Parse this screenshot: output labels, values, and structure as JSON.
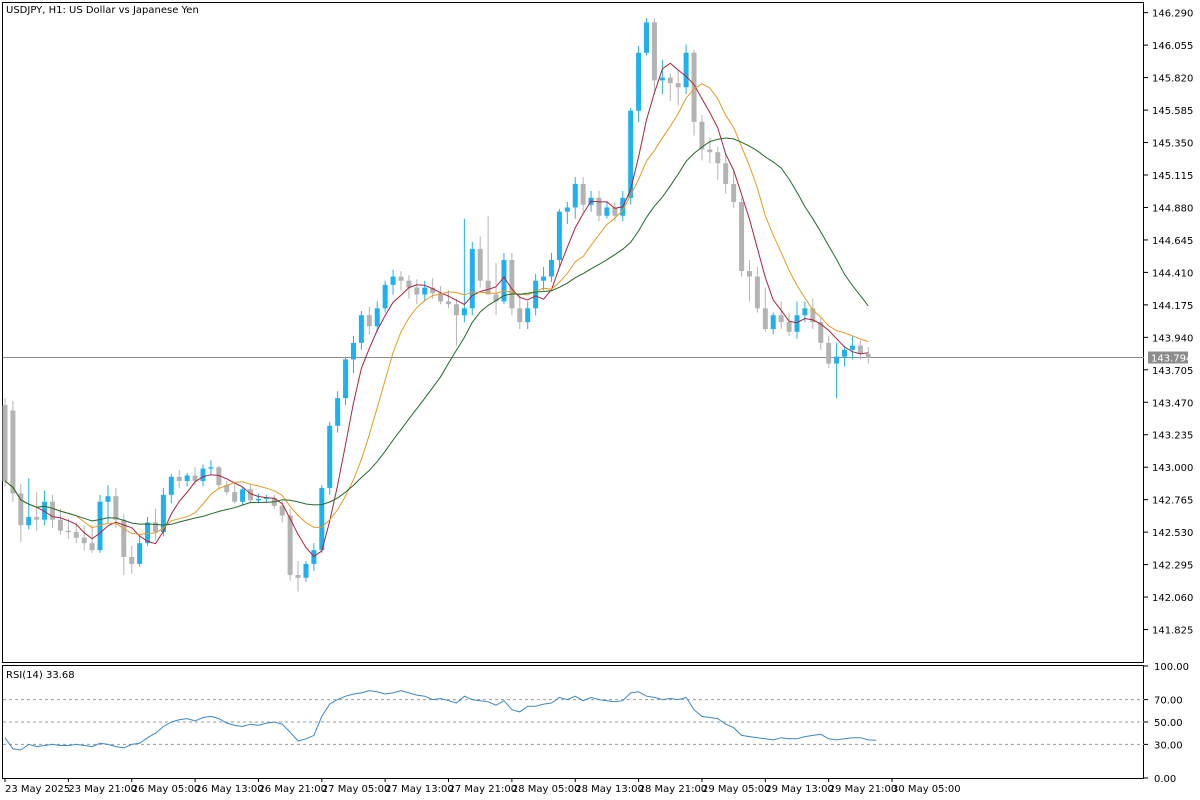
{
  "header": {
    "symbol": "USDJPY, H1:",
    "description": "US Dollar vs Japanese Yen"
  },
  "rsi_panel": {
    "label": "RSI(14) 33.68"
  },
  "current_price_label": "143.794",
  "colors": {
    "bull": "#1fb1ef",
    "bear": "#b3b3b3",
    "ma_fast": "#b0203a",
    "ma_mid": "#e49a1f",
    "ma_slow": "#1f6b2a",
    "rsi_line": "#3a88c9",
    "price_line": "#8c8c8c",
    "frame": "#000000"
  },
  "chart_data": [
    {
      "type": "candlestick",
      "panel": "price",
      "ylim": [
        141.59,
        146.36
      ],
      "grid": false,
      "y_ticks": [
        "146.290",
        "146.055",
        "145.820",
        "145.585",
        "145.350",
        "145.115",
        "144.880",
        "144.645",
        "144.410",
        "144.175",
        "143.940",
        "143.705",
        "143.470",
        "143.235",
        "143.000",
        "142.765",
        "142.530",
        "142.295",
        "142.060",
        "141.825"
      ],
      "x_tick_labels": [
        "23 May 2025",
        "23 May 21:00",
        "26 May 05:00",
        "26 May 13:00",
        "26 May 21:00",
        "27 May 05:00",
        "27 May 13:00",
        "27 May 21:00",
        "28 May 05:00",
        "28 May 13:00",
        "28 May 21:00",
        "29 May 05:00",
        "29 May 13:00",
        "29 May 21:00",
        "30 May 05:00"
      ],
      "x_tick_indices": [
        0,
        8,
        16,
        24,
        32,
        40,
        48,
        56,
        64,
        72,
        80,
        88,
        96,
        104,
        112
      ],
      "current_price": 143.794,
      "candles": [
        [
          143.45,
          143.5,
          142.86,
          142.9
        ],
        [
          143.41,
          143.48,
          142.75,
          142.81
        ],
        [
          142.81,
          142.88,
          142.46,
          142.58
        ],
        [
          142.58,
          142.92,
          142.55,
          142.64
        ],
        [
          142.64,
          142.82,
          142.54,
          142.62
        ],
        [
          142.62,
          142.83,
          142.58,
          142.75
        ],
        [
          142.75,
          142.8,
          142.56,
          142.62
        ],
        [
          142.62,
          142.7,
          142.51,
          142.54
        ],
        [
          142.54,
          142.63,
          142.48,
          142.53
        ],
        [
          142.53,
          142.6,
          142.45,
          142.49
        ],
        [
          142.49,
          142.58,
          142.4,
          142.45
        ],
        [
          142.45,
          142.58,
          142.38,
          142.4
        ],
        [
          142.4,
          142.8,
          142.38,
          142.75
        ],
        [
          142.75,
          142.87,
          142.6,
          142.79
        ],
        [
          142.79,
          142.85,
          142.56,
          142.62
        ],
        [
          142.62,
          142.66,
          142.22,
          142.35
        ],
        [
          142.35,
          142.43,
          142.23,
          142.3
        ],
        [
          142.3,
          142.5,
          142.28,
          142.45
        ],
        [
          142.45,
          142.64,
          142.43,
          142.6
        ],
        [
          142.6,
          142.7,
          142.47,
          142.53
        ],
        [
          142.53,
          142.85,
          142.5,
          142.8
        ],
        [
          142.8,
          142.95,
          142.74,
          142.93
        ],
        [
          142.93,
          142.98,
          142.85,
          142.9
        ],
        [
          142.9,
          142.96,
          142.86,
          142.94
        ],
        [
          142.94,
          143.0,
          142.87,
          142.9
        ],
        [
          142.9,
          143.02,
          142.86,
          142.99
        ],
        [
          142.99,
          143.05,
          142.94,
          143.0
        ],
        [
          143.0,
          143.01,
          142.84,
          142.87
        ],
        [
          142.87,
          142.9,
          142.8,
          142.82
        ],
        [
          142.82,
          142.88,
          142.74,
          142.75
        ],
        [
          142.75,
          142.86,
          142.73,
          142.84
        ],
        [
          142.84,
          142.88,
          142.74,
          142.76
        ],
        [
          142.76,
          142.81,
          142.74,
          142.77
        ],
        [
          142.77,
          142.8,
          142.74,
          142.78
        ],
        [
          142.78,
          142.8,
          142.7,
          142.72
        ],
        [
          142.72,
          142.76,
          142.6,
          142.65
        ],
        [
          142.65,
          142.7,
          142.18,
          142.22
        ],
        [
          142.22,
          142.32,
          142.1,
          142.2
        ],
        [
          142.2,
          142.32,
          142.17,
          142.3
        ],
        [
          142.3,
          142.45,
          142.25,
          142.4
        ],
        [
          142.4,
          142.87,
          142.38,
          142.85
        ],
        [
          142.85,
          143.33,
          142.8,
          143.3
        ],
        [
          143.3,
          143.55,
          143.25,
          143.5
        ],
        [
          143.5,
          143.8,
          143.45,
          143.78
        ],
        [
          143.78,
          143.95,
          143.68,
          143.9
        ],
        [
          143.9,
          144.13,
          143.85,
          144.1
        ],
        [
          144.1,
          144.16,
          143.96,
          144.02
        ],
        [
          144.02,
          144.2,
          143.98,
          144.15
        ],
        [
          144.15,
          144.35,
          144.12,
          144.32
        ],
        [
          144.32,
          144.43,
          144.25,
          144.38
        ],
        [
          144.38,
          144.42,
          144.28,
          144.35
        ],
        [
          144.35,
          144.39,
          144.22,
          144.3
        ],
        [
          144.3,
          144.36,
          144.18,
          144.25
        ],
        [
          144.25,
          144.35,
          144.2,
          144.3
        ],
        [
          144.3,
          144.37,
          144.22,
          144.26
        ],
        [
          144.26,
          144.31,
          144.18,
          144.2
        ],
        [
          144.2,
          144.28,
          144.15,
          144.18
        ],
        [
          144.18,
          144.22,
          143.88,
          144.1
        ],
        [
          144.1,
          144.8,
          144.05,
          144.15
        ],
        [
          144.15,
          144.63,
          144.1,
          144.58
        ],
        [
          144.58,
          144.67,
          144.3,
          144.35
        ],
        [
          144.35,
          144.82,
          144.28,
          144.25
        ],
        [
          144.25,
          144.48,
          144.1,
          144.2
        ],
        [
          144.2,
          144.55,
          144.18,
          144.5
        ],
        [
          144.5,
          144.55,
          144.1,
          144.15
        ],
        [
          144.15,
          144.25,
          144.0,
          144.05
        ],
        [
          144.05,
          144.2,
          144.0,
          144.15
        ],
        [
          144.15,
          144.4,
          144.1,
          144.35
        ],
        [
          144.35,
          144.45,
          144.28,
          144.38
        ],
        [
          144.38,
          144.55,
          144.34,
          144.5
        ],
        [
          144.5,
          144.87,
          144.45,
          144.85
        ],
        [
          144.85,
          144.92,
          144.76,
          144.88
        ],
        [
          144.88,
          145.1,
          144.8,
          145.05
        ],
        [
          145.05,
          145.1,
          144.85,
          144.9
        ],
        [
          144.9,
          145.0,
          144.85,
          144.95
        ],
        [
          144.95,
          145.0,
          144.78,
          144.82
        ],
        [
          144.82,
          144.92,
          144.8,
          144.88
        ],
        [
          144.88,
          144.92,
          144.78,
          144.82
        ],
        [
          144.82,
          145.0,
          144.78,
          144.95
        ],
        [
          144.95,
          145.6,
          144.9,
          145.58
        ],
        [
          145.58,
          146.05,
          145.5,
          146.0
        ],
        [
          146.0,
          146.25,
          145.98,
          146.22
        ],
        [
          146.22,
          146.25,
          145.72,
          145.8
        ],
        [
          145.8,
          145.95,
          145.7,
          145.82
        ],
        [
          145.82,
          145.85,
          145.65,
          145.78
        ],
        [
          145.78,
          145.88,
          145.62,
          145.75
        ],
        [
          145.75,
          146.06,
          145.7,
          146.0
        ],
        [
          146.0,
          146.02,
          145.4,
          145.5
        ],
        [
          145.5,
          145.55,
          145.22,
          145.3
        ],
        [
          145.3,
          145.38,
          145.2,
          145.28
        ],
        [
          145.28,
          145.32,
          145.08,
          145.2
        ],
        [
          145.2,
          145.27,
          144.98,
          145.05
        ],
        [
          145.05,
          145.16,
          144.88,
          144.92
        ],
        [
          144.92,
          144.95,
          144.38,
          144.42
        ],
        [
          144.42,
          144.5,
          144.2,
          144.38
        ],
        [
          144.38,
          144.45,
          144.12,
          144.15
        ],
        [
          144.15,
          144.3,
          143.98,
          144.0
        ],
        [
          144.0,
          144.12,
          143.96,
          144.1
        ],
        [
          144.1,
          144.2,
          144.0,
          144.05
        ],
        [
          144.05,
          144.12,
          143.95,
          143.98
        ],
        [
          143.98,
          144.2,
          143.93,
          144.1
        ],
        [
          144.1,
          144.2,
          144.05,
          144.15
        ],
        [
          144.15,
          144.22,
          144.0,
          144.05
        ],
        [
          144.05,
          144.08,
          143.85,
          143.9
        ],
        [
          143.9,
          143.95,
          143.72,
          143.75
        ],
        [
          143.75,
          143.9,
          143.5,
          143.8
        ],
        [
          143.8,
          143.88,
          143.73,
          143.85
        ],
        [
          143.85,
          143.95,
          143.78,
          143.88
        ],
        [
          143.88,
          143.92,
          143.78,
          143.82
        ],
        [
          143.82,
          143.87,
          143.75,
          143.79
        ]
      ],
      "moving_averages": [
        {
          "color_key": "ma_fast",
          "period": 5
        },
        {
          "color_key": "ma_mid",
          "period": 10
        },
        {
          "color_key": "ma_slow",
          "period": 20
        }
      ]
    },
    {
      "type": "line",
      "panel": "rsi",
      "ylim": [
        0,
        100
      ],
      "y_ticks": [
        "100.00",
        "70.00",
        "50.00",
        "30.00",
        "0.00"
      ],
      "levels": [
        70,
        50,
        30
      ],
      "values": [
        36,
        26,
        25,
        30,
        28,
        29,
        30,
        29,
        29,
        30,
        29,
        28,
        31,
        30,
        28,
        27,
        30,
        31,
        36,
        40,
        46,
        50,
        52,
        53,
        51,
        54,
        55,
        53,
        49,
        47,
        46,
        48,
        47,
        49,
        50,
        48,
        41,
        33,
        35,
        38,
        55,
        66,
        70,
        73,
        75,
        76,
        78,
        77,
        75,
        76,
        78,
        76,
        74,
        73,
        70,
        71,
        69,
        67,
        73,
        70,
        69,
        68,
        65,
        69,
        61,
        59,
        64,
        64,
        66,
        67,
        72,
        70,
        73,
        69,
        72,
        70,
        69,
        68,
        69,
        76,
        77,
        73,
        72,
        70,
        71,
        70,
        72,
        61,
        55,
        54,
        53,
        48,
        45,
        38,
        37,
        36,
        35,
        34,
        36,
        35,
        35,
        37,
        38,
        39,
        35,
        34,
        35,
        36,
        36,
        34,
        33.68
      ]
    }
  ]
}
